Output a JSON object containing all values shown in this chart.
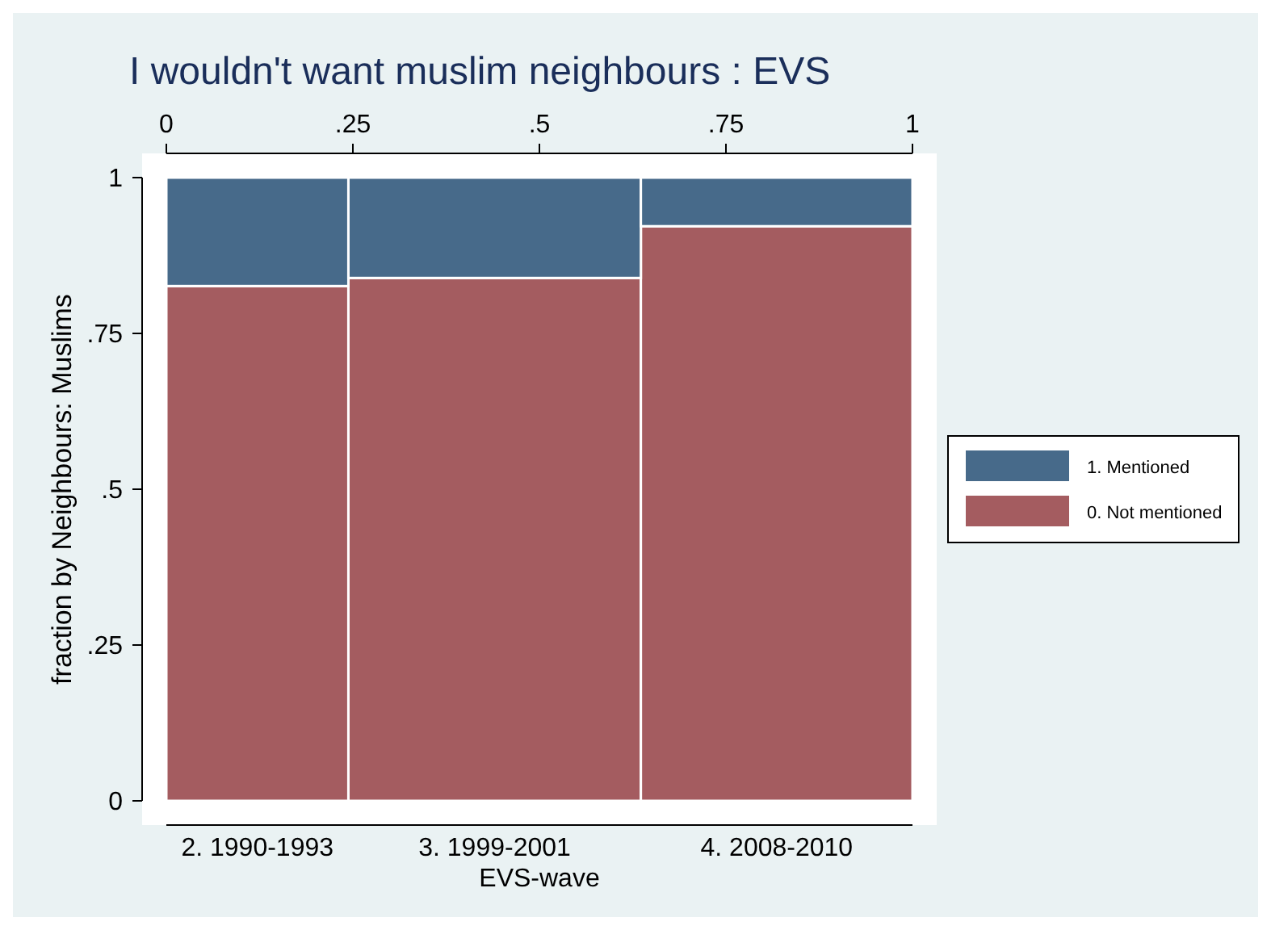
{
  "chart_data": {
    "type": "bar",
    "stacked": true,
    "title": "I wouldn't want muslim neighbours : EVS",
    "xlabel": "EVS-wave",
    "ylabel": "fraction by Neighbours: Muslims",
    "x": [
      0.122,
      0.44,
      0.818
    ],
    "xlim": [
      0,
      1
    ],
    "xticks": [
      0,
      {
        "value": 0.25,
        "label": ".25"
      },
      {
        "value": 0.5,
        "label": ".5"
      },
      {
        "value": 0.75,
        "label": ".75"
      },
      1
    ],
    "ylim": [
      0,
      1
    ],
    "yticks": [
      0,
      {
        "value": 0.25,
        "label": ".25"
      },
      {
        "value": 0.5,
        "label": ".5"
      },
      {
        "value": 0.75,
        "label": ".75"
      },
      1
    ],
    "annotations": [
      "2. 1990-1993",
      "3. 1999-2001",
      "4. 2008-2010"
    ],
    "series": [
      {
        "name": "0. Not mentioned",
        "color": "#a45c60",
        "values": [
          0.826,
          0.839,
          0.922
        ]
      },
      {
        "name": "1. Mentioned",
        "color": "#476a8a",
        "values": [
          0.174,
          0.161,
          0.078
        ]
      }
    ],
    "legend": "right",
    "grid": false
  }
}
